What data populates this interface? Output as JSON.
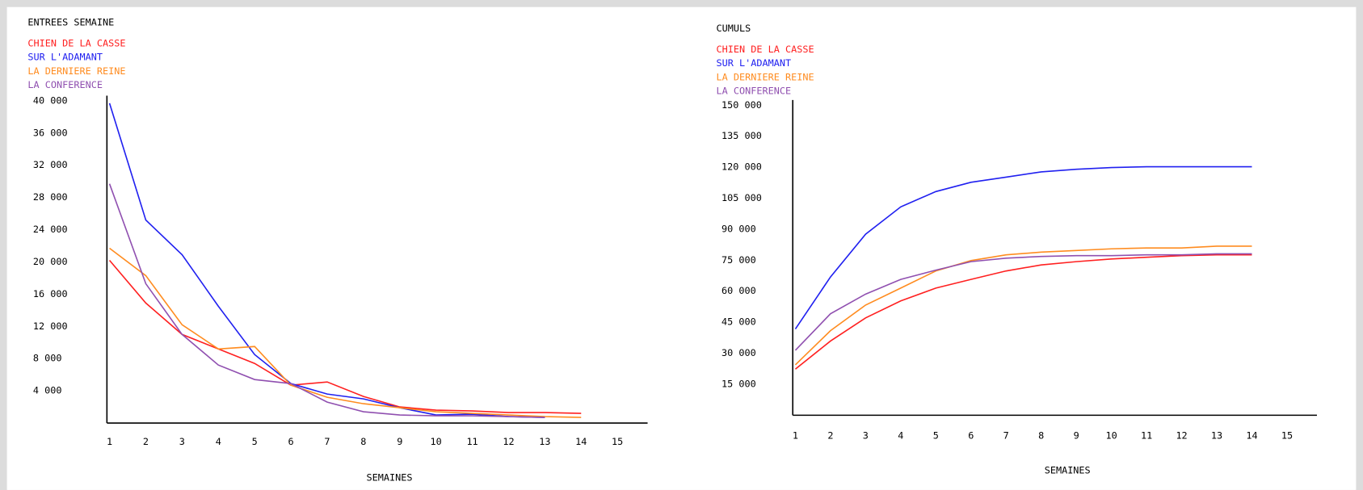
{
  "chart_data": [
    {
      "type": "line",
      "title": "ENTREES SEMAINE",
      "x_label": "SEMAINES",
      "x": [
        1,
        2,
        3,
        4,
        5,
        6,
        7,
        8,
        9,
        10,
        11,
        12,
        13,
        14
      ],
      "xlim": [
        1,
        16
      ],
      "xticks": [
        1,
        2,
        3,
        4,
        5,
        6,
        7,
        8,
        9,
        10,
        11,
        12,
        13,
        14,
        15
      ],
      "ylim": [
        0,
        40000
      ],
      "yticks": [
        {
          "value": 4000,
          "label": "4 000"
        },
        {
          "value": 8000,
          "label": "8 000"
        },
        {
          "value": 12000,
          "label": "12 000"
        },
        {
          "value": 16000,
          "label": "16 000"
        },
        {
          "value": 20000,
          "label": "20 000"
        },
        {
          "value": 24000,
          "label": "24 000"
        },
        {
          "value": 28000,
          "label": "28 000"
        },
        {
          "value": 32000,
          "label": "32 000"
        },
        {
          "value": 36000,
          "label": "36 000"
        },
        {
          "value": 40000,
          "label": "40 000"
        }
      ],
      "series": [
        {
          "name": "CHIEN DE LA CASSE",
          "color": "#ff2020",
          "values": [
            20200,
            14900,
            11000,
            9200,
            7400,
            4700,
            5100,
            3300,
            2000,
            1600,
            1500,
            1300,
            1300,
            1200
          ]
        },
        {
          "name": "SUR L'ADAMANT",
          "color": "#2020f0",
          "values": [
            39700,
            25200,
            20900,
            14500,
            8500,
            4900,
            3600,
            3000,
            1900,
            1000,
            1100,
            800,
            700,
            null
          ]
        },
        {
          "name": "LA DERNIERE REINE",
          "color": "#ff8c20",
          "values": [
            21700,
            18300,
            12200,
            9200,
            9500,
            4700,
            3200,
            2400,
            1900,
            1400,
            1200,
            1000,
            800,
            700
          ]
        },
        {
          "name": "LA CONFERENCE",
          "color": "#9050b0",
          "values": [
            29700,
            17300,
            11000,
            7200,
            5400,
            4900,
            2600,
            1400,
            1000,
            900,
            900,
            800,
            700,
            null
          ]
        }
      ]
    },
    {
      "type": "line",
      "title": "CUMULS",
      "x_label": "SEMAINES",
      "x": [
        1,
        2,
        3,
        4,
        5,
        6,
        7,
        8,
        9,
        10,
        11,
        12,
        13,
        14
      ],
      "xlim": [
        1,
        16
      ],
      "xticks": [
        1,
        2,
        3,
        4,
        5,
        6,
        7,
        8,
        9,
        10,
        11,
        12,
        13,
        14,
        15
      ],
      "ylim": [
        0,
        150000
      ],
      "yticks": [
        {
          "value": 15000,
          "label": "15 000"
        },
        {
          "value": 30000,
          "label": "30 000"
        },
        {
          "value": 45000,
          "label": "45 000"
        },
        {
          "value": 60000,
          "label": "60 000"
        },
        {
          "value": 75000,
          "label": "75 000"
        },
        {
          "value": 90000,
          "label": "90 000"
        },
        {
          "value": 105000,
          "label": "105 000"
        },
        {
          "value": 120000,
          "label": "120 000"
        },
        {
          "value": 135000,
          "label": "135 000"
        },
        {
          "value": 150000,
          "label": "150 000"
        }
      ],
      "series": [
        {
          "name": "CHIEN DE LA CASSE",
          "color": "#ff2020",
          "values": [
            22300,
            35900,
            47100,
            55300,
            61500,
            65700,
            69800,
            72700,
            74300,
            75600,
            76400,
            77200,
            77600,
            77600
          ]
        },
        {
          "name": "SUR L'ADAMANT",
          "color": "#2020f0",
          "values": [
            41700,
            66900,
            87600,
            100800,
            108200,
            112700,
            115200,
            117700,
            119000,
            119800,
            120200,
            120200,
            120200,
            120200
          ]
        },
        {
          "name": "LA DERNIERE REINE",
          "color": "#ff8c20",
          "values": [
            24400,
            40900,
            53300,
            61500,
            69800,
            74800,
            77600,
            78900,
            79700,
            80500,
            80900,
            80900,
            81800,
            81800
          ]
        },
        {
          "name": "LA CONFERENCE",
          "color": "#9050b0",
          "values": [
            31400,
            49100,
            58600,
            65700,
            70200,
            74300,
            76000,
            76800,
            77200,
            77200,
            77600,
            77600,
            78100,
            78100
          ]
        }
      ]
    }
  ]
}
